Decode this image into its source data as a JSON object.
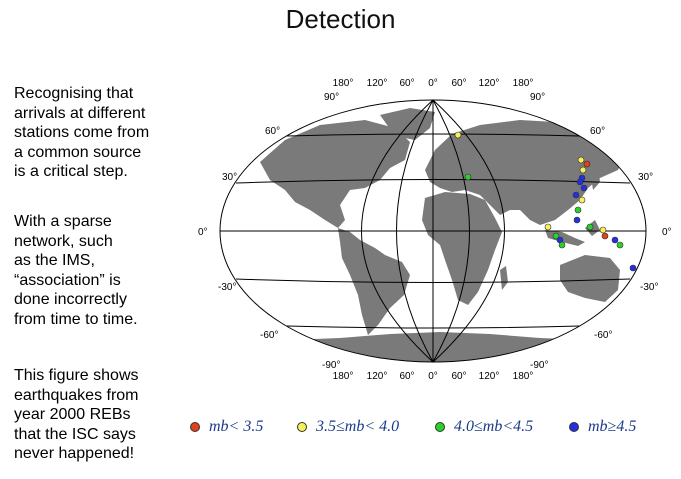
{
  "title": "Detection",
  "text": {
    "p1": "Recognising that\narrivals at different\nstations come from\na common source\nis a critical step.",
    "p2": "With a sparse\nnetwork, such\nas the IMS,\n“association” is\ndone incorrectly\nfrom time to time.",
    "p3": "This figure shows\nearthquakes from\nyear 2000 REBs\nthat the ISC says\nnever happened!"
  },
  "map": {
    "lon_top": [
      "180°",
      "120°",
      "60°",
      "0°",
      "60°",
      "120°",
      "180°"
    ],
    "lon_bottom": [
      "180°",
      "120°",
      "60°",
      "0°",
      "60°",
      "120°",
      "180°"
    ],
    "lat_left": [
      "90°",
      "60°",
      "30°",
      "0°",
      "-30°",
      "-60°",
      "-90°"
    ],
    "lat_right": [
      "90°",
      "60°",
      "30°",
      "0°",
      "-30°",
      "-60°",
      "-90°"
    ]
  },
  "legend": {
    "items": [
      {
        "label": "mb< 3.5",
        "color": "#e0401a"
      },
      {
        "label": "3.5≤mb< 4.0",
        "color": "#f6f05a"
      },
      {
        "label": "4.0≤mb<4.5",
        "color": "#2bd12b"
      },
      {
        "label": "mb≥4.5",
        "color": "#2330e0"
      }
    ]
  },
  "colors": {
    "land": "#7a7a7a",
    "grid": "#000000"
  }
}
